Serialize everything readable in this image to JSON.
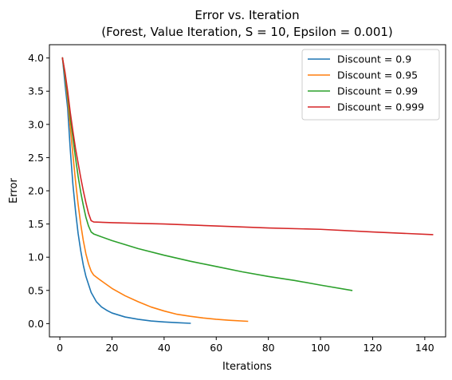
{
  "chart_data": {
    "type": "line",
    "title": "Error vs. Iteration",
    "subtitle": "(Forest, Value Iteration, S = 10, Epsilon = 0.001)",
    "xlabel": "Iterations",
    "ylabel": "Error",
    "xlim": [
      -4,
      148
    ],
    "ylim": [
      -0.2,
      4.2
    ],
    "xticks": [
      0,
      20,
      40,
      60,
      80,
      100,
      120,
      140
    ],
    "yticks": [
      0.0,
      0.5,
      1.0,
      1.5,
      2.0,
      2.5,
      3.0,
      3.5,
      4.0
    ],
    "ytick_labels": [
      "0.0",
      "0.5",
      "1.0",
      "1.5",
      "2.0",
      "2.5",
      "3.0",
      "3.5",
      "4.0"
    ],
    "grid": false,
    "legend_position": "top-right",
    "series": [
      {
        "name": "Discount = 0.9",
        "color": "#1f77b4",
        "points": [
          [
            1,
            4.0
          ],
          [
            2,
            3.6
          ],
          [
            3,
            3.24
          ],
          [
            4,
            2.62
          ],
          [
            5,
            2.1
          ],
          [
            6,
            1.7
          ],
          [
            7,
            1.36
          ],
          [
            8,
            1.1
          ],
          [
            9,
            0.88
          ],
          [
            10,
            0.71
          ],
          [
            12,
            0.47
          ],
          [
            14,
            0.33
          ],
          [
            16,
            0.25
          ],
          [
            18,
            0.2
          ],
          [
            20,
            0.16
          ],
          [
            25,
            0.1
          ],
          [
            30,
            0.065
          ],
          [
            35,
            0.04
          ],
          [
            40,
            0.025
          ],
          [
            45,
            0.014
          ],
          [
            50,
            0.005
          ]
        ]
      },
      {
        "name": "Discount = 0.95",
        "color": "#ff7f0e",
        "points": [
          [
            1,
            4.0
          ],
          [
            2,
            3.72
          ],
          [
            3,
            3.38
          ],
          [
            4,
            2.95
          ],
          [
            5,
            2.55
          ],
          [
            6,
            2.15
          ],
          [
            7,
            1.8
          ],
          [
            8,
            1.5
          ],
          [
            9,
            1.25
          ],
          [
            10,
            1.05
          ],
          [
            11,
            0.9
          ],
          [
            12,
            0.79
          ],
          [
            13,
            0.73
          ],
          [
            15,
            0.67
          ],
          [
            20,
            0.53
          ],
          [
            25,
            0.42
          ],
          [
            30,
            0.33
          ],
          [
            35,
            0.25
          ],
          [
            40,
            0.19
          ],
          [
            45,
            0.14
          ],
          [
            50,
            0.11
          ],
          [
            55,
            0.085
          ],
          [
            60,
            0.065
          ],
          [
            65,
            0.05
          ],
          [
            72,
            0.035
          ]
        ]
      },
      {
        "name": "Discount = 0.99",
        "color": "#2ca02c",
        "points": [
          [
            1,
            4.0
          ],
          [
            2,
            3.75
          ],
          [
            3,
            3.45
          ],
          [
            4,
            3.1
          ],
          [
            5,
            2.8
          ],
          [
            6,
            2.5
          ],
          [
            7,
            2.22
          ],
          [
            8,
            1.98
          ],
          [
            9,
            1.78
          ],
          [
            10,
            1.6
          ],
          [
            11,
            1.47
          ],
          [
            12,
            1.38
          ],
          [
            13,
            1.35
          ],
          [
            15,
            1.32
          ],
          [
            20,
            1.25
          ],
          [
            30,
            1.13
          ],
          [
            40,
            1.03
          ],
          [
            50,
            0.94
          ],
          [
            60,
            0.86
          ],
          [
            70,
            0.78
          ],
          [
            80,
            0.71
          ],
          [
            90,
            0.65
          ],
          [
            100,
            0.58
          ],
          [
            112,
            0.5
          ]
        ]
      },
      {
        "name": "Discount = 0.999",
        "color": "#d62728",
        "points": [
          [
            1,
            4.0
          ],
          [
            2,
            3.78
          ],
          [
            3,
            3.5
          ],
          [
            4,
            3.18
          ],
          [
            5,
            2.9
          ],
          [
            6,
            2.64
          ],
          [
            7,
            2.42
          ],
          [
            8,
            2.2
          ],
          [
            9,
            2.0
          ],
          [
            10,
            1.82
          ],
          [
            11,
            1.66
          ],
          [
            12,
            1.55
          ],
          [
            13,
            1.53
          ],
          [
            20,
            1.52
          ],
          [
            40,
            1.5
          ],
          [
            60,
            1.47
          ],
          [
            80,
            1.44
          ],
          [
            100,
            1.42
          ],
          [
            120,
            1.38
          ],
          [
            143,
            1.34
          ]
        ]
      }
    ]
  }
}
